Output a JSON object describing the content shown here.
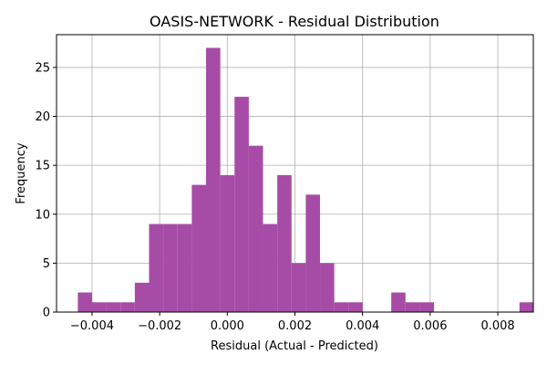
{
  "chart_data": {
    "type": "histogram",
    "title": "OASIS-NETWORK - Residual Distribution",
    "xlabel": "Residual (Actual - Predicted)",
    "ylabel": "Frequency",
    "xlim": [
      -0.00505,
      0.00905
    ],
    "ylim": [
      0,
      28.35
    ],
    "grid": true,
    "bar_color": "#a64ca6",
    "bin_start": -0.00442,
    "bin_width": 0.0004213,
    "counts": [
      2,
      1,
      1,
      1,
      3,
      9,
      9,
      9,
      13,
      27,
      14,
      22,
      17,
      9,
      14,
      5,
      12,
      5,
      1,
      1,
      0,
      0,
      2,
      1,
      1,
      0,
      0,
      0,
      0,
      0,
      0,
      1
    ],
    "x_ticks": [
      {
        "value": -0.004,
        "label": "−0.004"
      },
      {
        "value": -0.002,
        "label": "−0.002"
      },
      {
        "value": 0.0,
        "label": "0.000"
      },
      {
        "value": 0.002,
        "label": "0.002"
      },
      {
        "value": 0.004,
        "label": "0.004"
      },
      {
        "value": 0.006,
        "label": "0.006"
      },
      {
        "value": 0.008,
        "label": "0.008"
      }
    ],
    "y_ticks": [
      {
        "value": 0,
        "label": "0"
      },
      {
        "value": 5,
        "label": "5"
      },
      {
        "value": 10,
        "label": "10"
      },
      {
        "value": 15,
        "label": "15"
      },
      {
        "value": 20,
        "label": "20"
      },
      {
        "value": 25,
        "label": "25"
      }
    ]
  }
}
